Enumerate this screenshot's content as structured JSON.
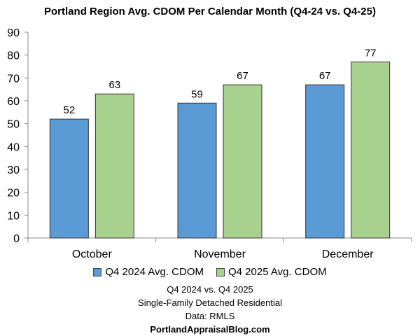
{
  "chart_data": {
    "type": "bar",
    "title": "Portland Region Avg. CDOM Per Calendar Month (Q4-24 vs. Q4-25)",
    "categories": [
      "October",
      "November",
      "December"
    ],
    "series": [
      {
        "name": "Q4 2024 Avg. CDOM",
        "values": [
          52,
          59,
          67
        ],
        "color": "#5b9bd5"
      },
      {
        "name": "Q4 2025 Avg. CDOM",
        "values": [
          63,
          67,
          77
        ],
        "color": "#a9d18e"
      }
    ],
    "ylim": [
      0,
      90
    ],
    "yticks": [
      0,
      10,
      20,
      30,
      40,
      50,
      60,
      70,
      80,
      90
    ],
    "xlabel": "",
    "ylabel": "",
    "grid": false,
    "legend": "bottom",
    "data_labels": true
  },
  "footer": {
    "line1": "Q4 2024 vs. Q4 2025",
    "line2": "Single-Family Detached Residential",
    "line3": "Data: RMLS",
    "line4": "PortlandAppraisalBlog.com"
  }
}
